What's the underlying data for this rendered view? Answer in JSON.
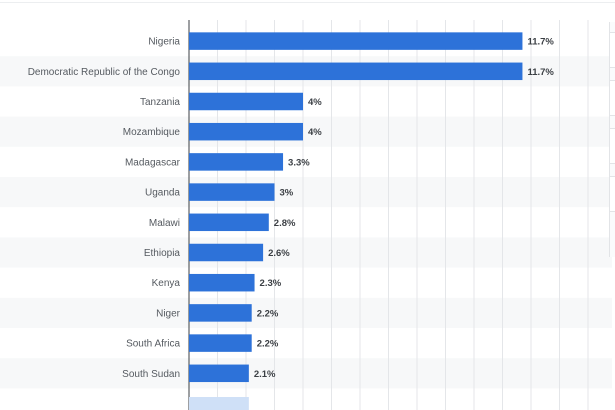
{
  "chart_data": {
    "type": "bar",
    "orientation": "horizontal",
    "categories": [
      "Nigeria",
      "Democratic Republic of the Congo",
      "Tanzania",
      "Mozambique",
      "Madagascar",
      "Uganda",
      "Malawi",
      "Ethiopia",
      "Kenya",
      "Niger",
      "South Africa",
      "South Sudan"
    ],
    "values": [
      11.7,
      11.7,
      4,
      4,
      3.3,
      3,
      2.8,
      2.6,
      2.3,
      2.2,
      2.2,
      2.1
    ],
    "value_labels": [
      "11.7%",
      "11.7%",
      "4%",
      "4%",
      "3.3%",
      "3%",
      "2.8%",
      "2.6%",
      "2.3%",
      "2.2%",
      "2.2%",
      "2.1%"
    ],
    "xlim": [
      0,
      14
    ],
    "grid": true,
    "bar_color": "#2d72d9"
  }
}
